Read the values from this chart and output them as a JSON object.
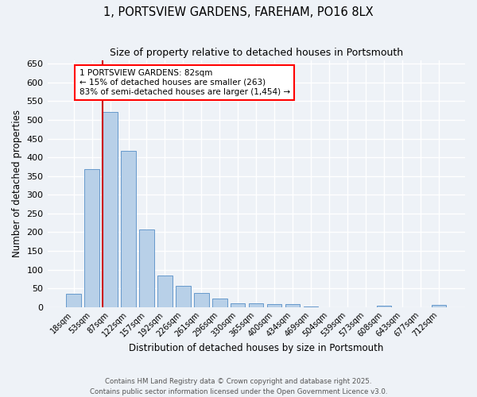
{
  "title": "1, PORTSVIEW GARDENS, FAREHAM, PO16 8LX",
  "subtitle": "Size of property relative to detached houses in Portsmouth",
  "xlabel": "Distribution of detached houses by size in Portsmouth",
  "ylabel": "Number of detached properties",
  "bar_labels": [
    "18sqm",
    "53sqm",
    "87sqm",
    "122sqm",
    "157sqm",
    "192sqm",
    "226sqm",
    "261sqm",
    "296sqm",
    "330sqm",
    "365sqm",
    "400sqm",
    "434sqm",
    "469sqm",
    "504sqm",
    "539sqm",
    "573sqm",
    "608sqm",
    "643sqm",
    "677sqm",
    "712sqm"
  ],
  "bar_values": [
    36,
    368,
    522,
    418,
    207,
    84,
    56,
    37,
    22,
    10,
    10,
    8,
    7,
    2,
    0,
    0,
    0,
    4,
    0,
    0,
    5
  ],
  "bar_color": "#b8d0e8",
  "bar_edgecolor": "#6699cc",
  "vline_color": "#cc0000",
  "annotation_text": "1 PORTSVIEW GARDENS: 82sqm\n← 15% of detached houses are smaller (263)\n83% of semi-detached houses are larger (1,454) →",
  "footnote1": "Contains HM Land Registry data © Crown copyright and database right 2025.",
  "footnote2": "Contains public sector information licensed under the Open Government Licence v3.0.",
  "bg_color": "#eef2f7",
  "ylim": [
    0,
    660
  ],
  "yticks": [
    0,
    50,
    100,
    150,
    200,
    250,
    300,
    350,
    400,
    450,
    500,
    550,
    600,
    650
  ]
}
